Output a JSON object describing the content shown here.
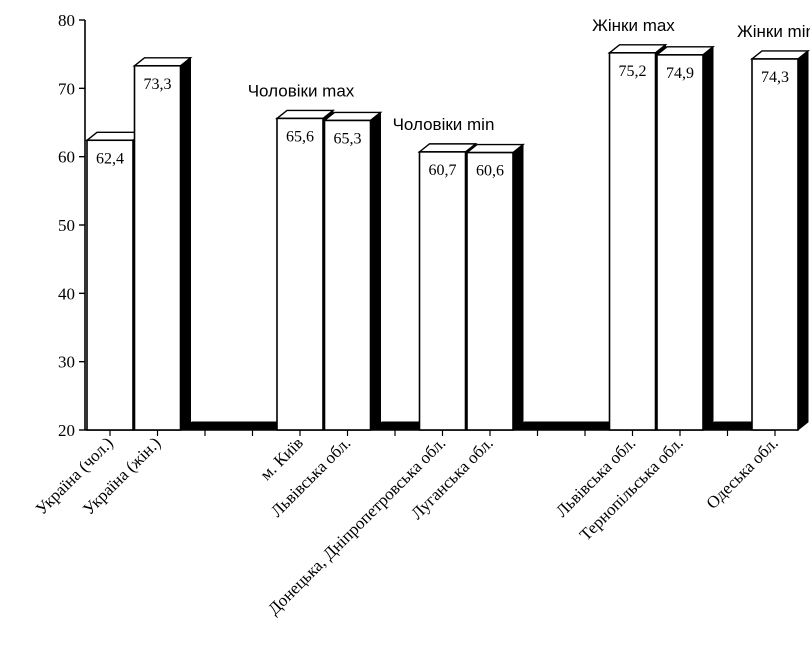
{
  "chart_data": {
    "type": "bar",
    "ylim": [
      20,
      80
    ],
    "yticks": [
      20,
      30,
      40,
      50,
      60,
      70,
      80
    ],
    "categories": [
      "Україна (чол.)",
      "Україна (жін.)",
      "",
      "",
      "м. Київ",
      "Львівська обл.",
      "",
      "Донецька, Дніпропетровська обл.",
      "Луганська обл.",
      "",
      "",
      "Львівська обл.",
      "Тернопільська обл.",
      "",
      "Одеська обл."
    ],
    "values": [
      62.4,
      73.3,
      null,
      null,
      65.6,
      65.3,
      null,
      60.7,
      60.6,
      null,
      null,
      75.2,
      74.9,
      null,
      74.3
    ],
    "value_labels": [
      "62,4",
      "73,3",
      "",
      "",
      "65,6",
      "65,3",
      "",
      "60,7",
      "60,6",
      "",
      "",
      "75,2",
      "74,9",
      "",
      "74,3"
    ],
    "group_labels": [
      {
        "text": "Чоловіки max",
        "category": 4
      },
      {
        "text": "Чоловіки min",
        "category": 7
      },
      {
        "text": "Жінки max",
        "category": 11
      },
      {
        "text": "Жінки min",
        "category": 14
      }
    ],
    "grid": false,
    "bar_fill": "#ffffff",
    "bar_side": "#000000",
    "bar_outline": "#000000"
  }
}
